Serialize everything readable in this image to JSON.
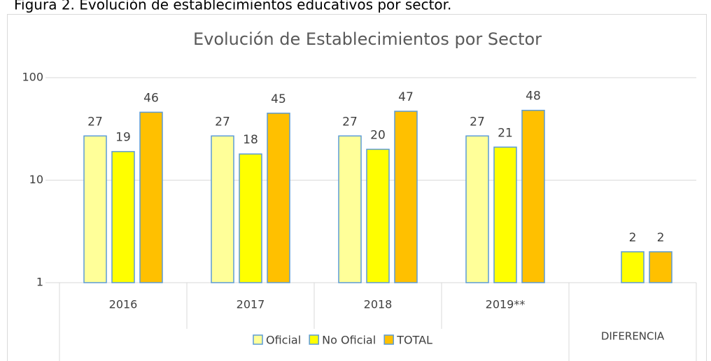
{
  "caption": "Figura 2. Evolución de establecimientos educativos por sector.",
  "chart_data": {
    "type": "bar",
    "title": "Evolución de Establecimientos por Sector",
    "categories": [
      "2016",
      "2017",
      "2018",
      "2019**",
      "DIFERENCIA"
    ],
    "series": [
      {
        "name": "Oficial",
        "color": "#ffff99",
        "values": [
          27,
          27,
          27,
          27,
          null
        ]
      },
      {
        "name": "No Oficial",
        "color": "#ffff00",
        "values": [
          19,
          18,
          20,
          21,
          2
        ]
      },
      {
        "name": "TOTAL",
        "color": "#ffc000",
        "values": [
          46,
          45,
          47,
          48,
          2
        ]
      }
    ],
    "ylim": [
      1,
      100
    ],
    "yticks": [
      1,
      10,
      100
    ],
    "log_scale": true,
    "grid": true,
    "legend": "bottom",
    "bar_edge_color": "#5b9bd5"
  }
}
